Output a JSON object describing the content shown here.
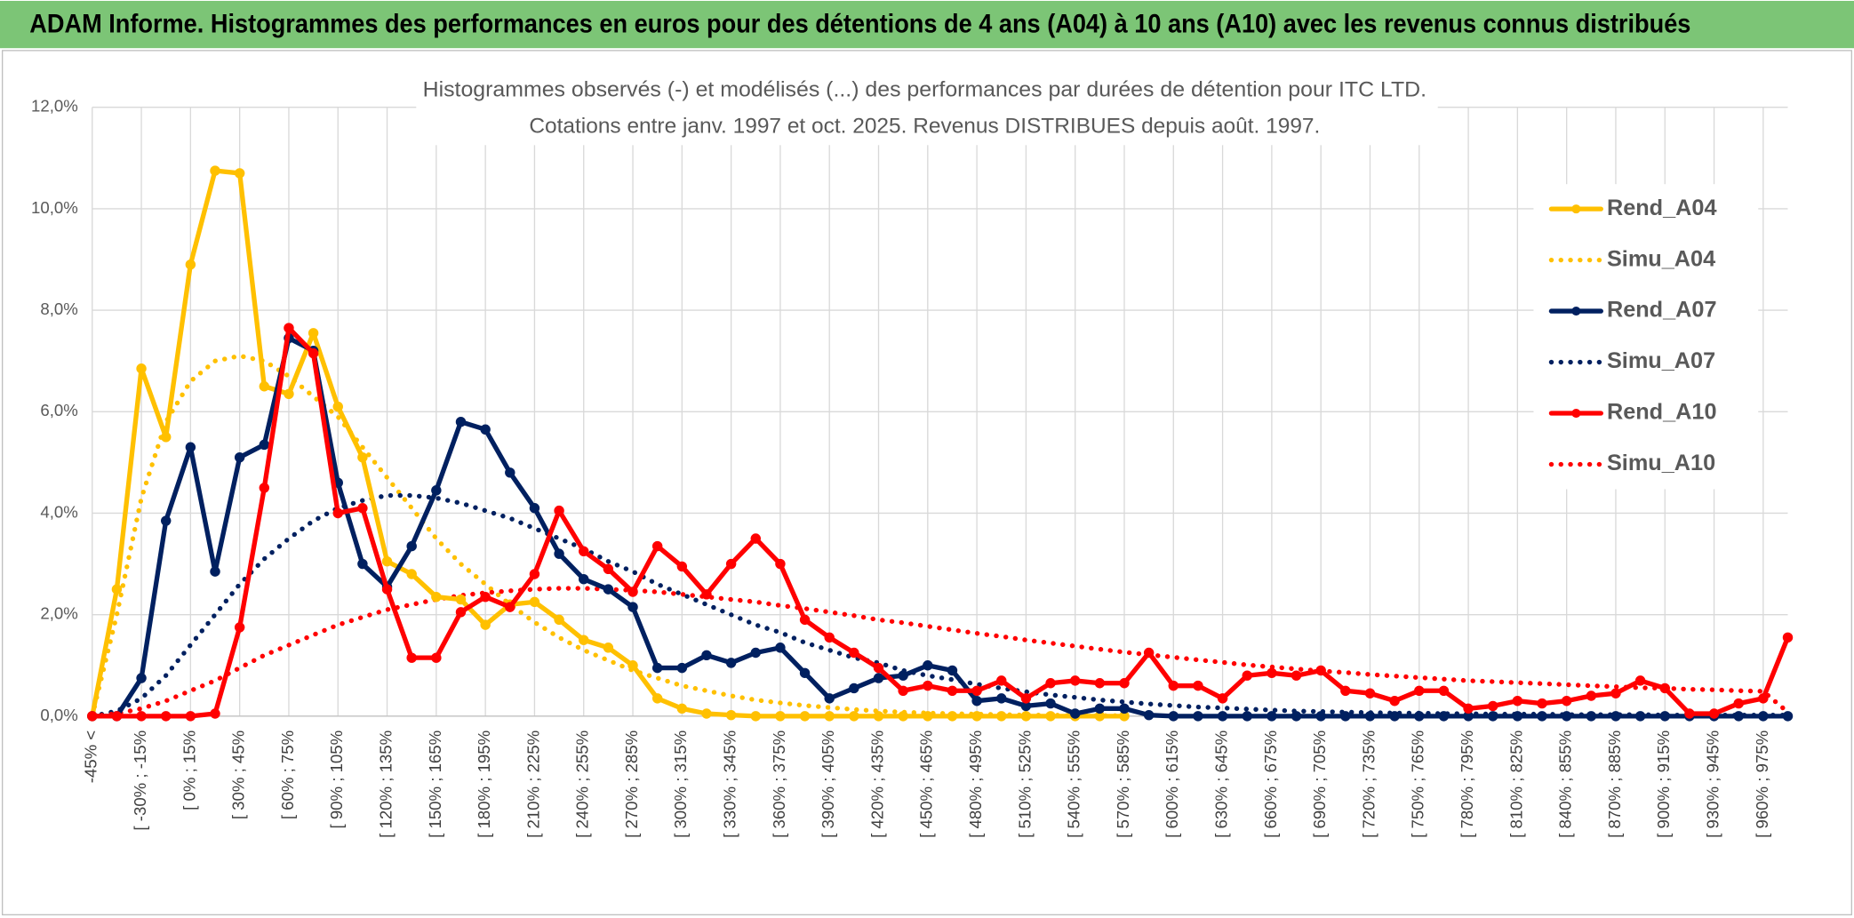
{
  "header": {
    "title": "ADAM Informe. Histogrammes des performances en euros pour des détentions de 4 ans (A04) à 10 ans (A10) avec les revenus connus distribués"
  },
  "chart_data": {
    "type": "line",
    "title": "Histogrammes observés (-) et modélisés (...) des performances par durées de détention pour ITC LTD.",
    "subtitle": "Cotations entre janv. 1997 et oct. 2025. Revenus DISTRIBUES depuis août. 1997.",
    "categories": [
      "-45% <",
      null,
      "[ -30% ; -15%",
      null,
      "[ 0% ; 15%",
      null,
      "[ 30% ; 45%",
      null,
      "[ 60% ; 75%",
      null,
      "[ 90% ; 105%",
      null,
      "[ 120% ; 135%",
      null,
      "[ 150% ; 165%",
      null,
      "[ 180% ; 195%",
      null,
      "[ 210% ; 225%",
      null,
      "[ 240% ; 255%",
      null,
      "[ 270% ; 285%",
      null,
      "[ 300% ; 315%",
      null,
      "[ 330% ; 345%",
      null,
      "[ 360% ; 375%",
      null,
      "[ 390% ; 405%",
      null,
      "[ 420% ; 435%",
      null,
      "[ 450% ; 465%",
      null,
      "[ 480% ; 495%",
      null,
      "[ 510% ; 525%",
      null,
      "[ 540% ; 555%",
      null,
      "[ 570% ; 585%",
      null,
      "[ 600% ; 615%",
      null,
      "[ 630% ; 645%",
      null,
      "[ 660% ; 675%",
      null,
      "[ 690% ; 705%",
      null,
      "[ 720% ; 735%",
      null,
      "[ 750% ; 765%",
      null,
      "[ 780% ; 795%",
      null,
      "[ 810% ; 825%",
      null,
      "[ 840% ; 855%",
      null,
      "[ 870% ; 885%",
      null,
      "[ 900% ; 915%",
      null,
      "[ 930% ; 945%",
      null,
      "[ 960% ; 975%",
      null
    ],
    "series": [
      {
        "name": "Rend_A04",
        "color": "#ffc000",
        "line_style": "solid",
        "markers": true,
        "values": [
          0,
          2.5,
          6.85,
          5.5,
          8.9,
          10.75,
          10.7,
          6.5,
          6.35,
          7.55,
          6.1,
          5.1,
          3.05,
          2.8,
          2.35,
          2.3,
          1.8,
          2.2,
          2.25,
          1.9,
          1.5,
          1.35,
          1.0,
          0.35,
          0.15,
          0.05,
          0.02,
          0,
          0,
          0,
          0,
          0,
          0,
          0,
          0,
          0,
          0,
          0,
          0,
          0,
          0,
          0,
          0,
          null,
          null,
          null,
          null,
          null,
          null,
          null,
          null,
          null,
          null,
          null,
          null,
          null,
          null,
          null,
          null,
          null,
          null,
          null,
          null,
          null,
          null,
          null,
          null,
          null,
          null,
          null
        ]
      },
      {
        "name": "Simu_A04",
        "color": "#ffc000",
        "line_style": "dotted",
        "markers": false,
        "values": [
          0,
          2.0,
          4.3,
          5.8,
          6.6,
          7.0,
          7.1,
          7.0,
          6.7,
          6.3,
          5.9,
          5.3,
          4.7,
          4.1,
          3.5,
          3.0,
          2.6,
          2.2,
          1.85,
          1.55,
          1.3,
          1.1,
          0.9,
          0.75,
          0.6,
          0.5,
          0.4,
          0.32,
          0.26,
          0.21,
          0.17,
          0.13,
          0.1,
          0.08,
          0.06,
          0.05,
          0.04,
          0.03,
          0.02,
          0.02,
          0.01,
          0.01,
          0.01,
          null,
          null,
          null,
          null,
          null,
          null,
          null,
          null,
          null,
          null,
          null,
          null,
          null,
          null,
          null,
          null,
          null,
          null,
          null,
          null,
          null,
          null,
          null,
          null,
          null,
          null,
          null
        ]
      },
      {
        "name": "Rend_A07",
        "color": "#002060",
        "line_style": "solid",
        "markers": true,
        "values": [
          0,
          0,
          0.75,
          3.85,
          5.3,
          2.85,
          5.1,
          5.35,
          7.45,
          7.2,
          4.6,
          3.0,
          2.55,
          3.35,
          4.45,
          5.8,
          5.65,
          4.8,
          4.1,
          3.2,
          2.7,
          2.5,
          2.15,
          0.95,
          0.95,
          1.2,
          1.05,
          1.25,
          1.35,
          0.85,
          0.35,
          0.55,
          0.75,
          0.8,
          1.0,
          0.9,
          0.3,
          0.35,
          0.2,
          0.25,
          0.05,
          0.15,
          0.15,
          0.02,
          0,
          0,
          0,
          0,
          0,
          0,
          0,
          0,
          0,
          0,
          0,
          0,
          0,
          0,
          0,
          0,
          0,
          0,
          0,
          0,
          0,
          0,
          0,
          0,
          0,
          0
        ]
      },
      {
        "name": "Simu_A07",
        "color": "#002060",
        "line_style": "dotted",
        "markers": false,
        "values": [
          0,
          0.1,
          0.35,
          0.8,
          1.4,
          2.0,
          2.6,
          3.1,
          3.5,
          3.85,
          4.1,
          4.25,
          4.35,
          4.35,
          4.3,
          4.2,
          4.05,
          3.9,
          3.7,
          3.5,
          3.3,
          3.05,
          2.85,
          2.6,
          2.4,
          2.2,
          2.0,
          1.8,
          1.65,
          1.45,
          1.3,
          1.15,
          1.05,
          0.9,
          0.8,
          0.72,
          0.63,
          0.55,
          0.48,
          0.42,
          0.37,
          0.32,
          0.28,
          0.24,
          0.21,
          0.18,
          0.16,
          0.14,
          0.12,
          0.1,
          0.09,
          0.08,
          0.07,
          0.06,
          0.06,
          0.05,
          0.05,
          0.04,
          0.04,
          0.04,
          0.03,
          0.03,
          0.03,
          0.03,
          0.02,
          0.02,
          0.02,
          0.02,
          0.02,
          0.02
        ]
      },
      {
        "name": "Rend_A10",
        "color": "#ff0000",
        "line_style": "solid",
        "markers": true,
        "values": [
          0,
          0,
          0,
          0,
          0,
          0.05,
          1.75,
          4.5,
          7.65,
          7.15,
          4.0,
          4.1,
          2.5,
          1.15,
          1.15,
          2.05,
          2.35,
          2.15,
          2.8,
          4.05,
          3.25,
          2.9,
          2.45,
          3.35,
          2.95,
          2.4,
          3.0,
          3.5,
          3.0,
          1.9,
          1.55,
          1.25,
          0.95,
          0.5,
          0.6,
          0.5,
          0.5,
          0.7,
          0.35,
          0.65,
          0.7,
          0.65,
          0.65,
          1.25,
          0.6,
          0.6,
          0.35,
          0.8,
          0.85,
          0.8,
          0.9,
          0.5,
          0.45,
          0.3,
          0.5,
          0.5,
          0.15,
          0.2,
          0.3,
          0.25,
          0.3,
          0.4,
          0.45,
          0.7,
          0.55,
          0.05,
          0.05,
          0.25,
          0.35,
          1.55
        ]
      },
      {
        "name": "Simu_A10",
        "color": "#ff0000",
        "line_style": "dotted",
        "markers": false,
        "values": [
          0,
          0.05,
          0.15,
          0.3,
          0.5,
          0.7,
          0.95,
          1.2,
          1.4,
          1.6,
          1.8,
          1.95,
          2.1,
          2.2,
          2.3,
          2.38,
          2.43,
          2.47,
          2.5,
          2.52,
          2.52,
          2.5,
          2.48,
          2.45,
          2.4,
          2.35,
          2.3,
          2.25,
          2.18,
          2.12,
          2.05,
          1.98,
          1.9,
          1.84,
          1.77,
          1.7,
          1.63,
          1.57,
          1.5,
          1.44,
          1.38,
          1.32,
          1.26,
          1.21,
          1.16,
          1.11,
          1.06,
          1.01,
          0.97,
          0.93,
          0.89,
          0.86,
          0.82,
          0.79,
          0.76,
          0.73,
          0.7,
          0.68,
          0.66,
          0.64,
          0.62,
          0.6,
          0.58,
          0.56,
          0.55,
          0.53,
          0.52,
          0.5,
          0.49,
          0.08
        ]
      }
    ],
    "ylim": [
      0,
      12
    ],
    "yticks": [
      {
        "value": 0,
        "label": "0,0%"
      },
      {
        "value": 2,
        "label": "2,0%"
      },
      {
        "value": 4,
        "label": "4,0%"
      },
      {
        "value": 6,
        "label": "6,0%"
      },
      {
        "value": 8,
        "label": "8,0%"
      },
      {
        "value": 10,
        "label": "10,0%"
      },
      {
        "value": 12,
        "label": "12,0%"
      }
    ],
    "grid": true,
    "legend": "right"
  }
}
